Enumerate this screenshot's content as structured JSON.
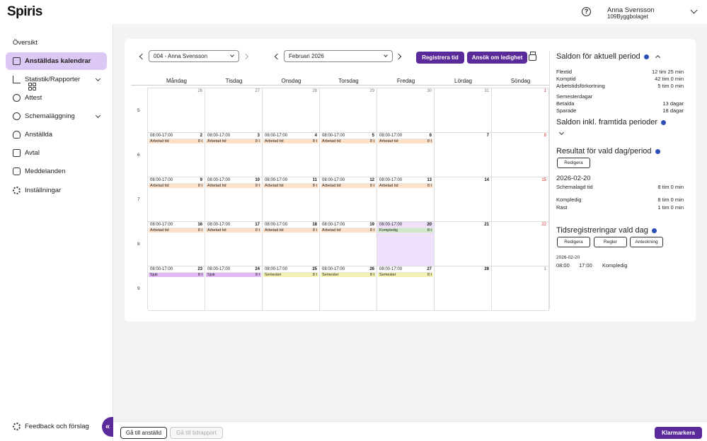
{
  "app": {
    "logo": "Spiris",
    "user_name": "Anna Svensson",
    "user_company": "109Byggbolaget"
  },
  "sidebar": {
    "items": [
      {
        "label": "Översikt",
        "icon": "grid-icon"
      },
      {
        "label": "Anställdas kalendrar",
        "icon": "calendar-icon",
        "active": true
      },
      {
        "label": "Statistik/Rapporter",
        "icon": "chart-icon",
        "expandable": true
      },
      {
        "label": "Attest",
        "icon": "check-circle-icon"
      },
      {
        "label": "Schemaläggning",
        "icon": "clock-icon",
        "expandable": true
      },
      {
        "label": "Anställda",
        "icon": "user-icon"
      },
      {
        "label": "Avtal",
        "icon": "briefcase-icon"
      },
      {
        "label": "Meddelanden",
        "icon": "chat-icon"
      },
      {
        "label": "Inställningar",
        "icon": "gear-icon"
      }
    ],
    "feedback": "Feedback och förslag",
    "collapse_glyph": "«"
  },
  "toolbar": {
    "employee_select": "004 - Anna Svensson",
    "month_select": "Februari 2026",
    "register_button": "Registrera tid",
    "leave_button": "Ansök om ledighet"
  },
  "calendar": {
    "weekdays": [
      "Måndag",
      "Tisdag",
      "Onsdag",
      "Torsdag",
      "Fredag",
      "Lördag",
      "Söndag"
    ],
    "weeks": [
      {
        "number": "5",
        "days": [
          {
            "day": "26",
            "kind": "other"
          },
          {
            "day": "27",
            "kind": "other"
          },
          {
            "day": "28",
            "kind": "other"
          },
          {
            "day": "29",
            "kind": "other"
          },
          {
            "day": "30",
            "kind": "other"
          },
          {
            "day": "31",
            "kind": "other"
          },
          {
            "day": "1",
            "kind": "red"
          }
        ]
      },
      {
        "number": "6",
        "days": [
          {
            "day": "2",
            "time": "08:00-17:00",
            "event": "Arbetad tid",
            "hours": "8 t",
            "type": "work"
          },
          {
            "day": "3",
            "time": "08:00-17:00",
            "event": "Arbetad tid",
            "hours": "8 t",
            "type": "work"
          },
          {
            "day": "4",
            "time": "08:00-17:00",
            "event": "Arbetad tid",
            "hours": "8 t",
            "type": "work"
          },
          {
            "day": "5",
            "time": "08:00-17:00",
            "event": "Arbetad tid",
            "hours": "8 t",
            "type": "work"
          },
          {
            "day": "6",
            "time": "08:00-17:00",
            "event": "Arbetad tid",
            "hours": "8 t",
            "type": "work"
          },
          {
            "day": "7"
          },
          {
            "day": "8",
            "kind": "red"
          }
        ]
      },
      {
        "number": "7",
        "days": [
          {
            "day": "9",
            "time": "08:00-17:00",
            "event": "Arbetad tid",
            "hours": "8 t",
            "type": "work"
          },
          {
            "day": "10",
            "time": "08:00-17:00",
            "event": "Arbetad tid",
            "hours": "8 t",
            "type": "work"
          },
          {
            "day": "11",
            "time": "08:00-17:00",
            "event": "Arbetad tid",
            "hours": "8 t",
            "type": "work"
          },
          {
            "day": "12",
            "time": "08:00-17:00",
            "event": "Arbetad tid",
            "hours": "8 t",
            "type": "work"
          },
          {
            "day": "13",
            "time": "08:00-17:00",
            "event": "Arbetad tid",
            "hours": "8 t",
            "type": "work"
          },
          {
            "day": "14"
          },
          {
            "day": "15",
            "kind": "red"
          }
        ]
      },
      {
        "number": "8",
        "days": [
          {
            "day": "16",
            "time": "08:00-17:00",
            "event": "Arbetad tid",
            "hours": "8 t",
            "type": "work"
          },
          {
            "day": "17",
            "time": "08:00-17:00",
            "event": "Arbetad tid",
            "hours": "8 t",
            "type": "work"
          },
          {
            "day": "18",
            "time": "08:00-17:00",
            "event": "Arbetad tid",
            "hours": "8 t",
            "type": "work"
          },
          {
            "day": "19",
            "time": "08:00-17:00",
            "event": "Arbetad tid",
            "hours": "8 t",
            "type": "work"
          },
          {
            "day": "20",
            "time": "08:00-17:00",
            "event": "Kompledig",
            "hours": "8 t",
            "type": "comp",
            "selected": true
          },
          {
            "day": "21"
          },
          {
            "day": "22",
            "kind": "red"
          }
        ]
      },
      {
        "number": "9",
        "days": [
          {
            "day": "23",
            "time": "08:00-17:00",
            "event": "Sjuk",
            "hours": "8 t",
            "type": "sick"
          },
          {
            "day": "24",
            "time": "08:00-17:00",
            "event": "Sjuk",
            "hours": "8 t",
            "type": "sick"
          },
          {
            "day": "25",
            "time": "08:00-17:00",
            "event": "Semester",
            "hours": "8 t",
            "type": "vacation"
          },
          {
            "day": "26",
            "time": "08:00-17:00",
            "event": "Semester",
            "hours": "8 t",
            "type": "vacation"
          },
          {
            "day": "27",
            "time": "08:00-17:00",
            "event": "Semester",
            "hours": "8 t",
            "type": "vacation"
          },
          {
            "day": "28"
          },
          {
            "day": "1",
            "kind": "other"
          }
        ]
      }
    ],
    "colors": {
      "work": "#fde0c8",
      "comp": "#cfe8c8",
      "sick": "#e2b8f4",
      "vacation": "#f3f2b0",
      "selected": "#efe1fb"
    }
  },
  "panel": {
    "balance_title": "Saldon för aktuell period",
    "balance_rows": [
      {
        "label": "Flextid",
        "value": "12 tim 25 min"
      },
      {
        "label": "Komptid",
        "value": "42 tim 0 min"
      },
      {
        "label": "Arbetstidsförkortning",
        "value": "5 tim 0 min"
      }
    ],
    "vacation_heading": "Semesterdagar",
    "vacation_rows": [
      {
        "label": "Betalda",
        "value": "13 dagar"
      },
      {
        "label": "Sparade",
        "value": "18 dagar"
      }
    ],
    "future_title": "Saldon inkl. framtida perioder",
    "result_title": "Resultat för vald dag/period",
    "edit_button": "Redigera",
    "result_date": "2026-02-20",
    "result_rows": [
      {
        "label": "Schemalagd tid",
        "value": "8 tim 0 min"
      },
      {
        "label": "Kompledig",
        "value": "8 tim 0 min"
      },
      {
        "label": "Rast",
        "value": "1 tim 0 min"
      }
    ],
    "reg_title": "Tidsregistreringar vald dag",
    "reg_buttons": [
      "Redigera",
      "Regler",
      "Anteckning"
    ],
    "reg_date": "2026-02-20",
    "reg_entry": {
      "start": "08:00",
      "end": "17:00",
      "type": "Kompledig"
    }
  },
  "footer": {
    "goto_employee": "Gå till anställd",
    "goto_report": "Gå till tidrapport",
    "approve": "Klarmarkera"
  }
}
